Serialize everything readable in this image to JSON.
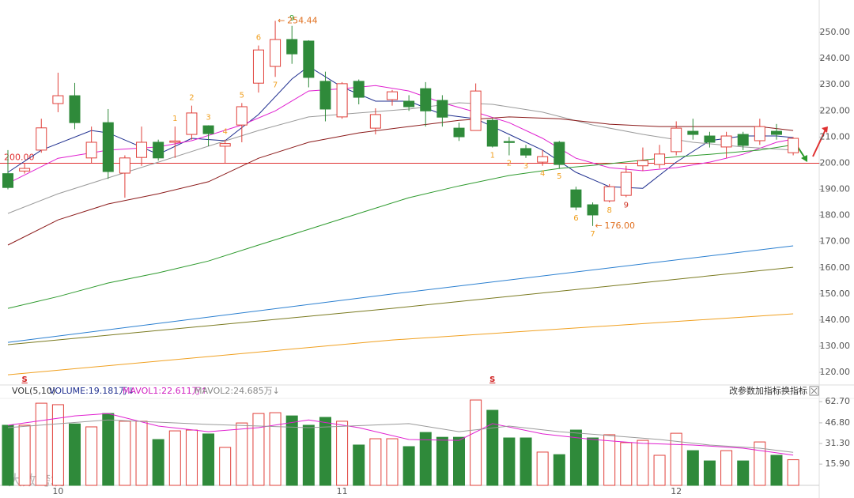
{
  "chart_data": {
    "type": "candlestick",
    "categories": [
      null,
      null,
      null,
      "10",
      null,
      null,
      null,
      null,
      null,
      null,
      null,
      null,
      null,
      null,
      null,
      null,
      null,
      null,
      null,
      null,
      "11",
      null,
      null,
      null,
      null,
      null,
      null,
      null,
      null,
      null,
      null,
      null,
      null,
      null,
      null,
      null,
      null,
      null,
      null,
      null,
      "12",
      null,
      null,
      null,
      null,
      null,
      null,
      null
    ],
    "up_color": "#e0403a",
    "down_color": "#2f8a3a",
    "open": [
      196,
      197,
      205,
      222.8,
      225.8,
      202,
      215.5,
      196.2,
      202.2,
      208,
      208,
      211,
      214.3,
      206.5,
      214.6,
      230.6,
      237,
      247.3,
      246.7,
      231.3,
      217.7,
      231.3,
      213.4,
      224.3,
      223.7,
      228.5,
      224,
      213.4,
      212.5,
      216.4,
      208.3,
      205.6,
      200.4,
      208,
      189.8,
      184.1,
      185.6,
      187.7,
      199,
      199.5,
      204.4,
      212.2,
      210.4,
      206.2,
      211,
      208.6,
      212.2,
      204
    ],
    "high": [
      205,
      200,
      217,
      234.6,
      230.7,
      214,
      220.7,
      203,
      214,
      209,
      214,
      222,
      214.5,
      209,
      223,
      245,
      254.44,
      252.5,
      247,
      235,
      231,
      232,
      221,
      228,
      226,
      231,
      226,
      215.5,
      230.5,
      217,
      210,
      207,
      205,
      208.5,
      191,
      185,
      192,
      199,
      206,
      207,
      216,
      217,
      212,
      212,
      212,
      217,
      215,
      210
    ],
    "low": [
      190,
      196,
      204,
      219.5,
      213,
      200,
      194,
      186.8,
      199,
      201,
      202,
      209,
      206.5,
      200,
      208,
      227,
      233,
      238,
      229,
      216,
      217,
      222.5,
      211,
      222,
      220,
      214,
      214,
      208.5,
      212.5,
      206,
      203,
      202,
      199,
      198,
      182,
      176,
      185,
      187,
      197,
      198,
      203,
      209,
      206,
      202,
      205,
      207,
      209,
      203
    ],
    "close": [
      190.7,
      198,
      213.5,
      225.8,
      215.5,
      208,
      196.8,
      202,
      208,
      202,
      208.5,
      219.2,
      211.3,
      207.5,
      221.6,
      243.3,
      247.3,
      241.8,
      232.8,
      220.7,
      230.4,
      225.2,
      218.6,
      227.3,
      221.6,
      220,
      217.6,
      210.1,
      227.6,
      206.5,
      207.9,
      203.1,
      202.5,
      199.5,
      183.2,
      180.2,
      191,
      196.5,
      201,
      203.5,
      213.4,
      211,
      208,
      210.4,
      206.8,
      214,
      211,
      209.5
    ],
    "ylim": [
      115.8,
      262.4
    ],
    "yticks": [
      {
        "value": 120,
        "label": "120.00"
      },
      {
        "value": 130,
        "label": "130.00"
      },
      {
        "value": 140,
        "label": "140.00"
      },
      {
        "value": 150,
        "label": "150.00"
      },
      {
        "value": 160,
        "label": "160.00"
      },
      {
        "value": 170,
        "label": "170.00"
      },
      {
        "value": 180,
        "label": "180.00"
      },
      {
        "value": 190,
        "label": "190.00"
      },
      {
        "value": 200,
        "label": "200.00"
      },
      {
        "value": 210,
        "label": "210.00"
      },
      {
        "value": 220,
        "label": "220.00"
      },
      {
        "value": 230,
        "label": "230.00"
      },
      {
        "value": 240,
        "label": "240.00"
      },
      {
        "value": 250,
        "label": "250.00"
      }
    ],
    "ma_lines": [
      {
        "color": "#1f2f8f",
        "x": [
          0,
          2,
          5,
          6,
          9,
          11,
          13,
          15,
          17,
          18,
          20,
          22,
          24,
          26,
          28,
          30,
          32,
          34,
          36,
          38,
          40,
          42,
          44,
          46,
          47
        ],
        "values": [
          196.5,
          205,
          212.5,
          211.6,
          203.4,
          209.5,
          208.6,
          218.6,
          232.2,
          237,
          229.1,
          223.7,
          223.7,
          218.6,
          217,
          211,
          205,
          196.5,
          191,
          190.4,
          200.4,
          208.6,
          210.4,
          210.4,
          209.8
        ]
      },
      {
        "color": "#e020d0",
        "x": [
          0,
          3,
          6,
          9,
          11,
          14,
          16,
          18,
          20,
          22,
          24,
          26,
          28,
          30,
          32,
          34,
          36,
          38,
          40,
          42,
          44,
          46,
          47
        ],
        "values": [
          192.3,
          201.9,
          205,
          206.2,
          208.6,
          214.6,
          220,
          227.6,
          228.5,
          229.7,
          227.6,
          223.1,
          219.5,
          215.5,
          209.5,
          201.9,
          198.3,
          197.1,
          198.3,
          200.4,
          203.4,
          208,
          209.2
        ]
      },
      {
        "color": "#9a9a9a",
        "x": [
          0,
          3,
          6,
          9,
          12,
          15,
          18,
          21,
          24,
          27,
          29,
          32,
          35,
          38,
          41,
          44,
          47
        ],
        "values": [
          180.8,
          188.3,
          194.4,
          200.4,
          206.5,
          212.5,
          217.7,
          219.2,
          220.7,
          223.1,
          222.5,
          219.5,
          214.6,
          211,
          208,
          206.2,
          205
        ]
      },
      {
        "color": "#8b1a1a",
        "x": [
          0,
          3,
          6,
          9,
          12,
          15,
          18,
          21,
          24,
          27,
          30,
          33,
          36,
          39,
          42,
          45,
          47
        ],
        "values": [
          168.7,
          178.3,
          184.4,
          188.3,
          192.9,
          201.9,
          208,
          211.6,
          214,
          216.4,
          217.7,
          217,
          214.9,
          214,
          214,
          214,
          212.5
        ]
      },
      {
        "color": "#2e9a2e",
        "x": [
          0,
          3,
          6,
          9,
          12,
          15,
          18,
          21,
          24,
          27,
          30,
          33,
          36,
          39,
          42,
          45,
          47
        ],
        "values": [
          144.5,
          149,
          154.2,
          158.1,
          162.6,
          168.7,
          174.7,
          180.8,
          186.8,
          191.3,
          195.3,
          198,
          199.8,
          201.9,
          203.4,
          205,
          207
        ]
      },
      {
        "color": "#2a7fd0",
        "x": [
          0,
          23,
          47
        ],
        "values": [
          131.5,
          150,
          168.4
        ]
      },
      {
        "color": "#7a7a20",
        "x": [
          0,
          23,
          47
        ],
        "values": [
          130.6,
          144.5,
          160.2
        ]
      },
      {
        "color": "#f0a020",
        "x": [
          0,
          23,
          47
        ],
        "values": [
          119.1,
          132.4,
          142.4
        ]
      }
    ],
    "reference": {
      "value": 200,
      "label": "200.00",
      "color": "#e03030"
    },
    "markers": [
      {
        "index": 16,
        "value": 254.44,
        "arrow": "←"
      },
      {
        "index": 35,
        "value": 176,
        "label": "176.00",
        "arrow": "←"
      }
    ],
    "annotations": [
      {
        "text": "1",
        "index": 10,
        "side": "above",
        "color": "#f0a020"
      },
      {
        "text": "2",
        "index": 11,
        "side": "above",
        "color": "#f0a020"
      },
      {
        "text": "3",
        "index": 12,
        "side": "above",
        "color": "#f0a020"
      },
      {
        "text": "4",
        "index": 13,
        "side": "above",
        "color": "#f0a020"
      },
      {
        "text": "5",
        "index": 14,
        "side": "above",
        "color": "#f0a020"
      },
      {
        "text": "6",
        "index": 15,
        "side": "above",
        "color": "#f0a020"
      },
      {
        "text": "7",
        "index": 16,
        "side": "below",
        "color": "#f0a020"
      },
      {
        "text": "9",
        "index": 17,
        "side": "above",
        "color": "#2ca02c"
      },
      {
        "text": "1",
        "index": 29,
        "side": "below",
        "color": "#f0a020"
      },
      {
        "text": "2",
        "index": 30,
        "side": "below",
        "color": "#f0a020"
      },
      {
        "text": "3",
        "index": 31,
        "side": "below",
        "color": "#f0a020"
      },
      {
        "text": "4",
        "index": 32,
        "side": "below",
        "color": "#f0a020"
      },
      {
        "text": "5",
        "index": 33,
        "side": "below",
        "color": "#f0a020"
      },
      {
        "text": "6",
        "index": 34,
        "side": "below",
        "color": "#f0a020"
      },
      {
        "text": "7",
        "index": 35,
        "side": "below",
        "color": "#f0a020"
      },
      {
        "text": "8",
        "index": 36,
        "side": "below",
        "color": "#f0a020"
      },
      {
        "text": "9",
        "index": 37,
        "side": "below",
        "color": "#d03020"
      }
    ],
    "signals": [
      {
        "index": 1,
        "text": "S"
      },
      {
        "index": 29,
        "text": "S"
      }
    ],
    "volume": {
      "title": "VOL(5,10)",
      "volume_text": "VOLUME:19.181万↓",
      "mavol1_text": "MAVOL1:22.611万↑",
      "mavol2_text": "MAVOL2:24.685万↓",
      "values": [
        45,
        45,
        61.5,
        60.4,
        46,
        43.8,
        53.8,
        48,
        48,
        34.3,
        40.8,
        41.4,
        38.5,
        28.4,
        46.7,
        53.8,
        54.4,
        52,
        45,
        50.9,
        48,
        30.2,
        34.9,
        34.9,
        29,
        39.6,
        36,
        36,
        63.9,
        56.2,
        35.5,
        35.5,
        24.9,
        23,
        41.4,
        35.5,
        37.9,
        32,
        33.7,
        22.5,
        39,
        26,
        18.3,
        26,
        18.3,
        32.5,
        22.5,
        19.18
      ],
      "ylim": [
        0,
        65.1
      ],
      "yticks": [
        {
          "value": 15.9,
          "label": "15.90"
        },
        {
          "value": 31.3,
          "label": "31.30"
        },
        {
          "value": 46.8,
          "label": "46.80"
        },
        {
          "value": 62.7,
          "label": "62.70"
        }
      ],
      "mavol": [
        {
          "color": "#e020d0",
          "x": [
            0,
            4,
            6,
            9,
            12,
            15,
            18,
            21,
            24,
            27,
            29,
            32,
            35,
            38,
            41,
            44,
            47
          ],
          "values": [
            45,
            52,
            53.8,
            44.4,
            40.2,
            43.2,
            49,
            43.2,
            34.3,
            33.7,
            46.2,
            38.5,
            34.3,
            31.4,
            30.2,
            27.8,
            22.6
          ]
        },
        {
          "color": "#9a9a9a",
          "x": [
            0,
            6,
            12,
            18,
            24,
            27,
            30,
            33,
            36,
            39,
            42,
            45,
            47
          ],
          "values": [
            43.2,
            49,
            45.6,
            43.2,
            46.2,
            40.2,
            44.4,
            40.2,
            37.3,
            34.3,
            30.2,
            27.8,
            24.7
          ]
        }
      ]
    },
    "buttons": [
      "改参数",
      "加指标",
      "换指标"
    ],
    "watermark": "大数跨境"
  }
}
